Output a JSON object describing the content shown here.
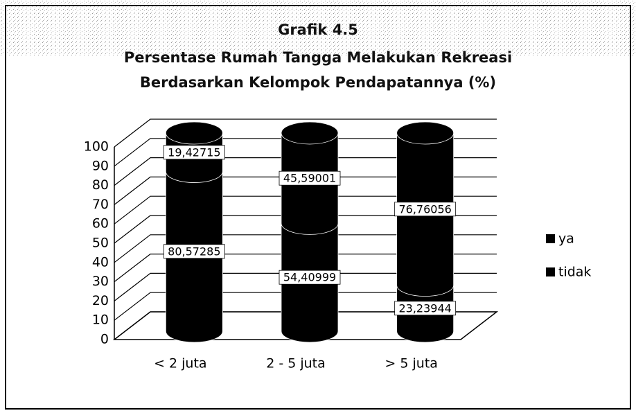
{
  "chart_data": {
    "type": "bar3d_stacked_cylinder",
    "title": "Grafik 4.5",
    "subtitle": [
      "Persentase Rumah Tangga Melakukan Rekreasi",
      "Berdasarkan Kelompok Pendapatannya (%)"
    ],
    "categories": [
      "< 2 juta",
      "2 - 5 juta",
      "> 5 juta"
    ],
    "series": [
      {
        "name": "ya",
        "color": "#000000",
        "values": [
          80.57285,
          54.40999,
          23.23944
        ],
        "value_labels": [
          "80,57285",
          "54,40999",
          "23,23944"
        ]
      },
      {
        "name": "tidak",
        "color": "#000000",
        "values": [
          19.42715,
          45.59001,
          76.76056
        ],
        "value_labels": [
          "19,42715",
          "45,59001",
          "76,76056"
        ]
      }
    ],
    "ylim": [
      0,
      100
    ],
    "yticks": [
      0,
      10,
      20,
      30,
      40,
      50,
      60,
      70,
      80,
      90,
      100
    ],
    "grid": true,
    "legend": "right"
  }
}
